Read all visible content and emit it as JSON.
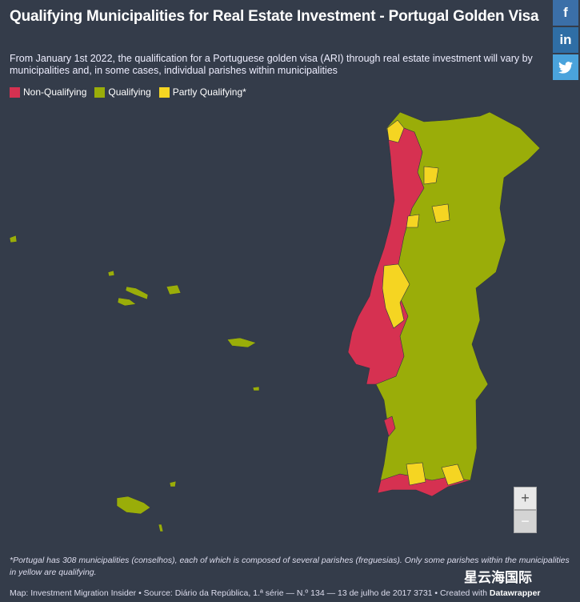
{
  "header": {
    "title": "Qualifying Municipalities for Real Estate Investment - Portugal Golden Visa",
    "subtitle": "From January 1st 2022, the qualification for a Portuguese golden visa (ARI) through real estate investment will vary by municipalities and, in some cases, individual parishes within municipalities"
  },
  "legend": [
    {
      "label": "Non-Qualifying",
      "color": "#d63151"
    },
    {
      "label": "Qualifying",
      "color": "#9aad09"
    },
    {
      "label": "Partly Qualifying*",
      "color": "#f5d522"
    }
  ],
  "social": {
    "facebook": "f",
    "linkedin": "in"
  },
  "zoom": {
    "in": "+",
    "out": "−"
  },
  "footnote": "*Portugal has 308 municipalities (conselhos), each of which is composed of several parishes (freguesias). Only some parishes within the municipalities in yellow are qualifying.",
  "source": "Map: Investment Migration Insider • Source: Diário da República, 1.ª série — N.º 134 — 13 de julho de 2017 3731 • Created with",
  "credit": "Datawrapper",
  "watermark": "星云海国际"
}
